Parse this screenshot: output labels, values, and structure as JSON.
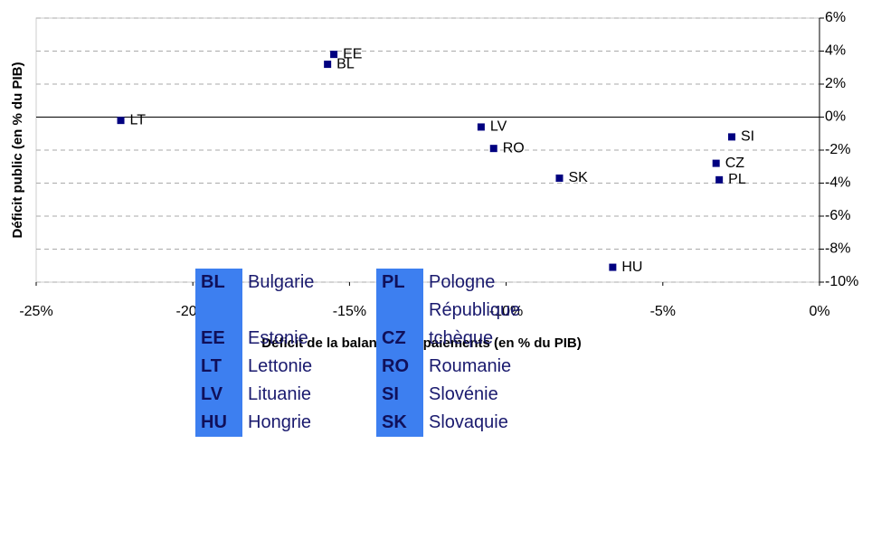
{
  "chart_data": {
    "type": "scatter",
    "x_label": "Déficit de la balance des paiements (en % du PIB)",
    "y_label": "Déficit public (en % du PIB)",
    "point_labels": [
      "LT",
      "EE",
      "BL",
      "LV",
      "RO",
      "SK",
      "HU",
      "SI",
      "CZ",
      "PL"
    ],
    "x": [
      -22.3,
      -15.5,
      -15.7,
      -10.8,
      -10.4,
      -8.3,
      -6.6,
      -2.8,
      -3.3,
      -3.2
    ],
    "y": [
      -0.2,
      3.8,
      3.2,
      -0.6,
      -1.9,
      -3.7,
      -9.1,
      -1.2,
      -2.8,
      -3.8
    ],
    "color": "#000080",
    "xlim": [
      -25,
      0
    ],
    "xticks": [
      {
        "value": -25,
        "label": "-25%"
      },
      {
        "value": -20,
        "label": "-20%"
      },
      {
        "value": -15,
        "label": "-15%"
      },
      {
        "value": -10,
        "label": "-10%"
      },
      {
        "value": -5,
        "label": "-5%"
      },
      {
        "value": 0,
        "label": "0%"
      }
    ],
    "ylim": [
      -10,
      6
    ],
    "yticks": [
      {
        "value": 6,
        "label": "6%"
      },
      {
        "value": 4,
        "label": "4%"
      },
      {
        "value": 2,
        "label": "2%"
      },
      {
        "value": 0,
        "label": "0%"
      },
      {
        "value": -2,
        "label": "-2%"
      },
      {
        "value": -4,
        "label": "-4%"
      },
      {
        "value": -6,
        "label": "-6%"
      },
      {
        "value": -8,
        "label": "-8%"
      },
      {
        "value": -10,
        "label": "-10%"
      }
    ],
    "grid": true
  },
  "legend_table": {
    "rows": [
      [
        "BL",
        "Bulgarie",
        "PL",
        "Pologne"
      ],
      [
        "EE",
        "Estonie",
        "CZ",
        "République tchèque"
      ],
      [
        "LT",
        "Lettonie",
        "RO",
        "Roumanie"
      ],
      [
        "LV",
        "Lituanie",
        "SI",
        "Slovénie"
      ],
      [
        "HU",
        "Hongrie",
        "SK",
        "Slovaquie"
      ]
    ]
  }
}
